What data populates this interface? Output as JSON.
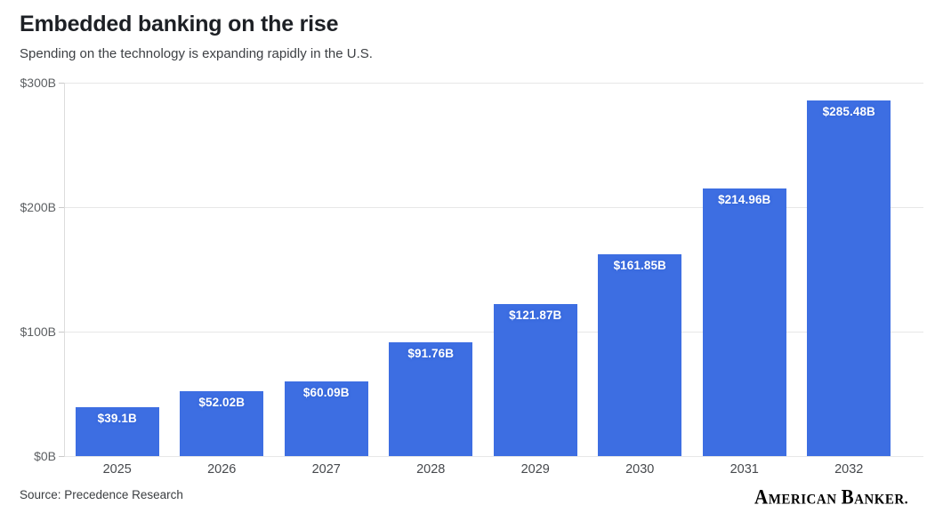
{
  "header": {
    "title": "Embedded banking on the rise",
    "subtitle": "Spending on the technology is expanding rapidly in the U.S."
  },
  "chart_data": {
    "type": "bar",
    "title": "Embedded banking on the rise",
    "subtitle": "Spending on the technology is expanding rapidly in the U.S.",
    "categories": [
      "2025",
      "2026",
      "2027",
      "2028",
      "2029",
      "2030",
      "2031",
      "2032"
    ],
    "values": [
      39.1,
      52.02,
      60.09,
      91.76,
      121.87,
      161.85,
      214.96,
      285.48
    ],
    "bar_labels": [
      "$39.1B",
      "$52.02B",
      "$60.09B",
      "$91.76B",
      "$121.87B",
      "$161.85B",
      "$214.96B",
      "$285.48B"
    ],
    "xlabel": "",
    "ylabel": "",
    "ylim": [
      0,
      300
    ],
    "y_tick_labels": [
      "$0B",
      "$100B",
      "$200B",
      "$300B"
    ],
    "y_tick_values": [
      0,
      100,
      200,
      300
    ],
    "grid": "horizontal",
    "legend": "none",
    "bar_color": "#3d6ee2",
    "value_label_color": "#ffffff",
    "units": "billions USD"
  },
  "footer": {
    "source": "Source: Precedence Research",
    "logo_word1": "AMERICAN",
    "logo_word2": "BANKER."
  }
}
